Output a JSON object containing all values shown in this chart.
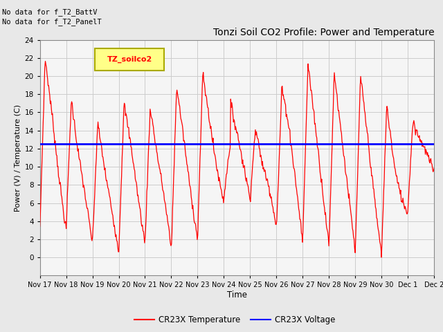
{
  "title": "Tonzi Soil CO2 Profile: Power and Temperature",
  "ylabel": "Power (V) / Temperature (C)",
  "xlabel": "Time",
  "annotations": [
    "No data for f_T2_BattV",
    "No data for f_T2_PanelT"
  ],
  "legend_label_box": "TZ_soilco2",
  "legend_items": [
    "CR23X Temperature",
    "CR23X Voltage"
  ],
  "legend_colors": [
    "red",
    "blue"
  ],
  "ylim": [
    -2,
    24
  ],
  "yticks": [
    0,
    2,
    4,
    6,
    8,
    10,
    12,
    14,
    16,
    18,
    20,
    22,
    24
  ],
  "xtick_labels": [
    "Nov 17",
    "Nov 18",
    "Nov 19",
    "Nov 20",
    "Nov 21",
    "Nov 22",
    "Nov 23",
    "Nov 24",
    "Nov 25",
    "Nov 26",
    "Nov 27",
    "Nov 28",
    "Nov 29",
    "Nov 30",
    "Dec 1",
    "Dec 2"
  ],
  "voltage_value": 12.5,
  "background_color": "#e8e8e8",
  "plot_bg_color": "#f5f5f5",
  "grid_color": "#cccccc"
}
